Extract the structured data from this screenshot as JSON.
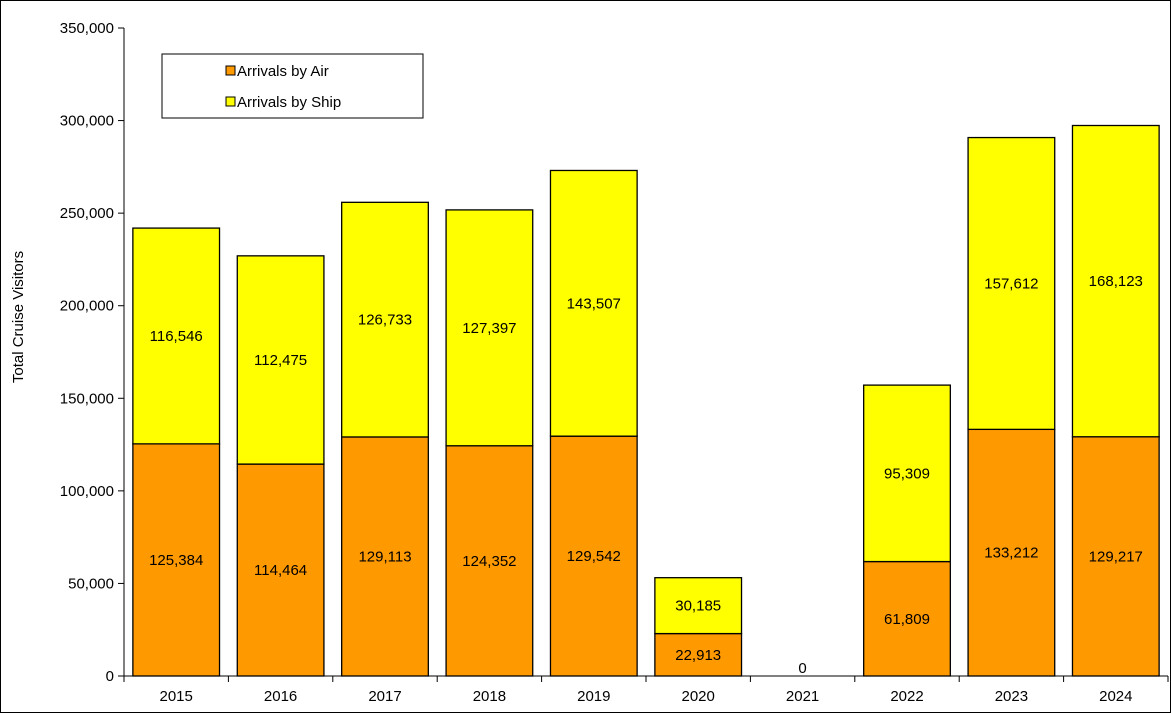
{
  "chart_data": {
    "type": "bar",
    "stacked": true,
    "title": "",
    "xlabel": "",
    "ylabel": "Total Cruise Visitors",
    "ylim": [
      0,
      350000
    ],
    "yticks": [
      0,
      50000,
      100000,
      150000,
      200000,
      250000,
      300000,
      350000
    ],
    "ytick_labels": [
      "0",
      "50,000",
      "100,000",
      "150,000",
      "200,000",
      "250,000",
      "300,000",
      "350,000"
    ],
    "categories": [
      "2015",
      "2016",
      "2017",
      "2018",
      "2019",
      "2020",
      "2021",
      "2022",
      "2023",
      "2024"
    ],
    "series": [
      {
        "name": "Arrivals by Air",
        "color": "#FF9900",
        "values": [
          125384,
          114464,
          129113,
          124352,
          129542,
          22913,
          0,
          61809,
          133212,
          129217
        ],
        "labels": [
          "125,384",
          "114,464",
          "129,113",
          "124,352",
          "129,542",
          "22,913",
          "0",
          "61,809",
          "133,212",
          "129,217"
        ]
      },
      {
        "name": "Arrivals by Ship",
        "color": "#FFFF00",
        "values": [
          116546,
          112475,
          126733,
          127397,
          143507,
          30185,
          0,
          95309,
          157612,
          168123
        ],
        "labels": [
          "116,546",
          "112,475",
          "126,733",
          "127,397",
          "143,507",
          "30,185",
          "0",
          "95,309",
          "157,612",
          "168,123"
        ]
      }
    ],
    "legend": {
      "position": "top-left",
      "boxed": true
    },
    "grid": false
  }
}
